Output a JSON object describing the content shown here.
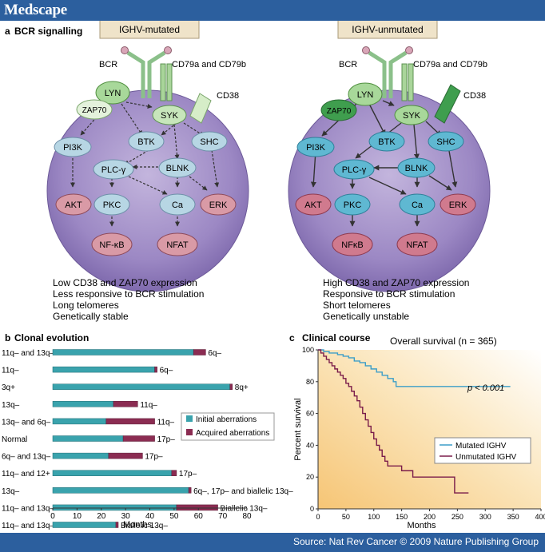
{
  "header": {
    "brand": "Medscape"
  },
  "footer": {
    "source": "Source: Nat Rev Cancer © 2009 Nature Publishing Group"
  },
  "colors": {
    "initial": "#3aa3ad",
    "acquired": "#8b2c52",
    "mutated_line": "#3c9ec8",
    "unmutated_line": "#7a1c4a",
    "cell": "#9a86c2"
  },
  "panel_a": {
    "label": "a",
    "title": "BCR signalling",
    "left": {
      "header": "IGHV-mutated",
      "bcr": "BCR",
      "cd79": "CD79a and CD79b",
      "cd38": "CD38",
      "nodes": {
        "lyn": "LYN",
        "zap70": "ZAP70",
        "syk": "SYK",
        "pi3k": "PI3K",
        "btk": "BTK",
        "shc": "SHC",
        "plc": "PLC-γ",
        "blnk": "BLNK",
        "akt": "AKT",
        "pkc": "PKC",
        "ca": "Ca",
        "erk": "ERK",
        "nfkb": "NF-κB",
        "nfat": "NFAT"
      },
      "notes": [
        "Low CD38 and ZAP70 expression",
        "Less responsive to BCR stimulation",
        "Long telomeres",
        "Genetically stable"
      ]
    },
    "right": {
      "header": "IGHV-unmutated",
      "bcr": "BCR",
      "cd79": "CD79a and CD79b",
      "cd38": "CD38",
      "nodes": {
        "lyn": "LYN",
        "zap70": "ZAP70",
        "syk": "SYK",
        "pi3k": "PI3K",
        "btk": "BTK",
        "shc": "SHC",
        "plc": "PLC-γ",
        "blnk": "BLNK",
        "akt": "AKT",
        "pkc": "PKC",
        "ca": "Ca",
        "erk": "ERK",
        "nfkb": "NFκB",
        "nfat": "NFAT"
      },
      "notes": [
        "High CD38 and ZAP70 expression",
        "Responsive to BCR stimulation",
        "Short telomeres",
        "Genetically unstable"
      ]
    }
  },
  "panel_b": {
    "label": "b",
    "title": "Clonal evolution",
    "xlabel": "Months",
    "legend": {
      "initial": "Initial aberrations",
      "acquired": "Acquired aberrations"
    }
  },
  "panel_c": {
    "label": "c",
    "title": "Clinical course",
    "chart_title": "Overall survival (n = 365)",
    "pvalue": "p < 0.001",
    "ylabel": "Percent survival",
    "xlabel": "Months",
    "legend": {
      "mutated": "Mutated IGHV",
      "unmutated": "Unmutated IGHV"
    }
  },
  "chart_data": [
    {
      "type": "bar",
      "title": "Clonal evolution",
      "xlabel": "Months",
      "xlim": [
        0,
        80
      ],
      "xticks": [
        0,
        10,
        20,
        30,
        40,
        50,
        60,
        70,
        80
      ],
      "rows": [
        {
          "initial_label": "11q– and 13q–",
          "initial": 58,
          "acquired": 5,
          "acquired_label": "6q–"
        },
        {
          "initial_label": "11q–",
          "initial": 42,
          "acquired": 1,
          "acquired_label": "6q–"
        },
        {
          "initial_label": "3q+",
          "initial": 73,
          "acquired": 1,
          "acquired_label": "8q+"
        },
        {
          "initial_label": "13q–",
          "initial": 25,
          "acquired": 10,
          "acquired_label": "11q–"
        },
        {
          "initial_label": "13q– and 6q–",
          "initial": 22,
          "acquired": 20,
          "acquired_label": "11q–"
        },
        {
          "initial_label": "Normal",
          "initial": 29,
          "acquired": 13,
          "acquired_label": "17p–"
        },
        {
          "initial_label": "6q– and 13q–",
          "initial": 23,
          "acquired": 14,
          "acquired_label": "17p–"
        },
        {
          "initial_label": "11q– and 12+",
          "initial": 49,
          "acquired": 2,
          "acquired_label": "17p–"
        },
        {
          "initial_label": "13q–",
          "initial": 56,
          "acquired": 1,
          "acquired_label": "6q–, 17p– and biallelic 13q–"
        },
        {
          "initial_label": "11q– and 13q–",
          "initial": 51,
          "acquired": 17,
          "acquired_label": "Biallelic 13q–"
        },
        {
          "initial_label": "11q– and 13q–",
          "initial": 26,
          "acquired": 1,
          "acquired_label": "Biallelic 13q–"
        }
      ],
      "series": [
        {
          "name": "Initial aberrations"
        },
        {
          "name": "Acquired aberrations"
        }
      ]
    },
    {
      "type": "line",
      "title": "Overall survival (n = 365)",
      "xlabel": "Months",
      "ylabel": "Percent survival",
      "xlim": [
        0,
        400
      ],
      "ylim": [
        0,
        100
      ],
      "xticks": [
        0,
        50,
        100,
        150,
        200,
        250,
        300,
        350,
        400
      ],
      "yticks": [
        0,
        20,
        40,
        60,
        80,
        100
      ],
      "series": [
        {
          "name": "Mutated IGHV",
          "step": true,
          "points": [
            [
              0,
              100
            ],
            [
              10,
              99
            ],
            [
              20,
              98
            ],
            [
              35,
              97
            ],
            [
              45,
              96
            ],
            [
              55,
              95
            ],
            [
              65,
              93
            ],
            [
              75,
              92
            ],
            [
              85,
              90
            ],
            [
              95,
              88
            ],
            [
              105,
              86
            ],
            [
              115,
              84
            ],
            [
              125,
              82
            ],
            [
              135,
              80
            ],
            [
              140,
              77
            ],
            [
              345,
              77
            ]
          ]
        },
        {
          "name": "Unmutated IGHV",
          "step": true,
          "points": [
            [
              0,
              100
            ],
            [
              5,
              98
            ],
            [
              10,
              96
            ],
            [
              15,
              94
            ],
            [
              20,
              92
            ],
            [
              25,
              90
            ],
            [
              30,
              88
            ],
            [
              35,
              86
            ],
            [
              40,
              84
            ],
            [
              45,
              82
            ],
            [
              50,
              79
            ],
            [
              55,
              77
            ],
            [
              60,
              74
            ],
            [
              65,
              71
            ],
            [
              70,
              68
            ],
            [
              75,
              64
            ],
            [
              80,
              60
            ],
            [
              85,
              56
            ],
            [
              90,
              52
            ],
            [
              95,
              48
            ],
            [
              100,
              44
            ],
            [
              105,
              40
            ],
            [
              110,
              37
            ],
            [
              115,
              33
            ],
            [
              120,
              30
            ],
            [
              125,
              27
            ],
            [
              145,
              27
            ],
            [
              150,
              24
            ],
            [
              170,
              20
            ],
            [
              240,
              20
            ],
            [
              245,
              10
            ],
            [
              270,
              10
            ]
          ]
        }
      ]
    }
  ]
}
